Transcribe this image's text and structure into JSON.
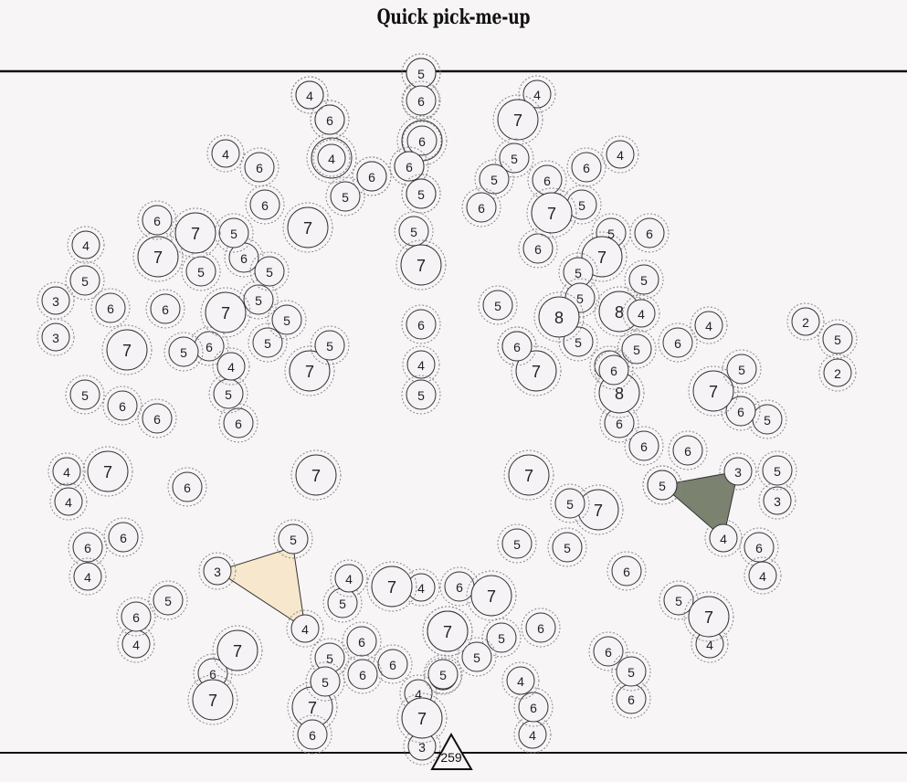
{
  "title": "Quick pick-me-up",
  "score": "259",
  "colors": {
    "background": "#f7f5f6",
    "line": "#111111",
    "disc_fill": "#f5f3f5",
    "disc_stroke": "#333333",
    "halo_stroke": "#888888",
    "triangle_cream": "#f7e7cc",
    "triangle_olive": "#7b8270"
  },
  "discs": [
    {
      "v": "5"
    },
    {
      "v": "4"
    },
    {
      "v": "7"
    },
    {
      "v": "5"
    },
    {
      "v": "6"
    },
    {
      "v": "5"
    },
    {
      "v": "7"
    },
    {
      "v": "6"
    },
    {
      "v": "4"
    },
    {
      "v": "8"
    },
    {
      "v": "6"
    },
    {
      "v": "4"
    },
    {
      "v": "6"
    },
    {
      "v": "7"
    },
    {
      "v": "5"
    },
    {
      "v": "5"
    },
    {
      "v": "4"
    },
    {
      "v": "6"
    },
    {
      "v": "6"
    },
    {
      "v": "7"
    },
    {
      "v": "5"
    },
    {
      "v": "4"
    },
    {
      "v": "6"
    },
    {
      "v": "7"
    },
    {
      "v": "7"
    },
    {
      "v": "5"
    },
    {
      "v": "6"
    },
    {
      "v": "6"
    },
    {
      "v": "5"
    },
    {
      "v": "6"
    },
    {
      "v": "4"
    },
    {
      "v": "7"
    },
    {
      "v": "5"
    },
    {
      "v": "6"
    },
    {
      "v": "7"
    },
    {
      "v": "6"
    },
    {
      "v": "7"
    },
    {
      "v": "5"
    },
    {
      "v": "5"
    },
    {
      "v": "5"
    },
    {
      "v": "5"
    },
    {
      "v": "7"
    },
    {
      "v": "5"
    },
    {
      "v": "5"
    },
    {
      "v": "5"
    },
    {
      "v": "8"
    },
    {
      "v": "4"
    },
    {
      "v": "7"
    },
    {
      "v": "5"
    },
    {
      "v": "5"
    },
    {
      "v": "6"
    },
    {
      "v": "4"
    },
    {
      "v": "6"
    },
    {
      "v": "5"
    },
    {
      "v": "6"
    },
    {
      "v": "6"
    },
    {
      "v": "7"
    },
    {
      "v": "5"
    },
    {
      "v": "7"
    },
    {
      "v": "6"
    },
    {
      "v": "5"
    },
    {
      "v": "6"
    },
    {
      "v": "6"
    },
    {
      "v": "2"
    },
    {
      "v": "5"
    },
    {
      "v": "2"
    },
    {
      "v": "6"
    },
    {
      "v": "5"
    },
    {
      "v": "6"
    },
    {
      "v": "3"
    },
    {
      "v": "5"
    },
    {
      "v": "3"
    },
    {
      "v": "5"
    },
    {
      "v": "4"
    },
    {
      "v": "6"
    },
    {
      "v": "4"
    },
    {
      "v": "6"
    },
    {
      "v": "5"
    },
    {
      "v": "6"
    },
    {
      "v": "7"
    },
    {
      "v": "5"
    },
    {
      "v": "5"
    },
    {
      "v": "6"
    },
    {
      "v": "5"
    },
    {
      "v": "4"
    },
    {
      "v": "6"
    },
    {
      "v": "4"
    },
    {
      "v": "4"
    },
    {
      "v": "3"
    },
    {
      "v": "6"
    },
    {
      "v": "7"
    },
    {
      "v": "6"
    },
    {
      "v": "4"
    },
    {
      "v": "4"
    },
    {
      "v": "4"
    },
    {
      "v": "6"
    },
    {
      "v": "5"
    },
    {
      "v": "4"
    },
    {
      "v": "6"
    },
    {
      "v": "7"
    },
    {
      "v": "5"
    },
    {
      "v": "7"
    },
    {
      "v": "3"
    },
    {
      "v": "4"
    },
    {
      "v": "4"
    },
    {
      "v": "6"
    },
    {
      "v": "5"
    },
    {
      "v": "4"
    },
    {
      "v": "6"
    },
    {
      "v": "4"
    },
    {
      "v": "3"
    },
    {
      "v": "5"
    },
    {
      "v": "4"
    },
    {
      "v": "5"
    },
    {
      "v": "6"
    },
    {
      "v": "7"
    },
    {
      "v": "3"
    },
    {
      "v": "5"
    },
    {
      "v": "6"
    },
    {
      "v": "7"
    },
    {
      "v": "5"
    },
    {
      "v": "5"
    },
    {
      "v": "7"
    },
    {
      "v": "5"
    },
    {
      "v": "6"
    },
    {
      "v": "8"
    },
    {
      "v": "6"
    },
    {
      "v": "5"
    },
    {
      "v": "6"
    },
    {
      "v": "5"
    },
    {
      "v": "6"
    },
    {
      "v": "5"
    },
    {
      "v": "4"
    },
    {
      "v": "6"
    },
    {
      "v": "5"
    },
    {
      "v": "7"
    },
    {
      "v": "6"
    },
    {
      "v": "7"
    },
    {
      "v": "6"
    },
    {
      "v": "6"
    },
    {
      "v": "4"
    },
    {
      "v": "5"
    },
    {
      "v": "7"
    },
    {
      "v": "7"
    },
    {
      "v": "5"
    },
    {
      "v": "7"
    },
    {
      "v": "6"
    },
    {
      "v": "5"
    },
    {
      "v": "5"
    },
    {
      "v": "8"
    },
    {
      "v": "5"
    },
    {
      "v": "6"
    },
    {
      "v": "6"
    },
    {
      "v": "6"
    },
    {
      "v": "5"
    },
    {
      "v": "6"
    },
    {
      "v": "4"
    },
    {
      "v": "6"
    },
    {
      "v": "4"
    },
    {
      "v": "7"
    }
  ]
}
